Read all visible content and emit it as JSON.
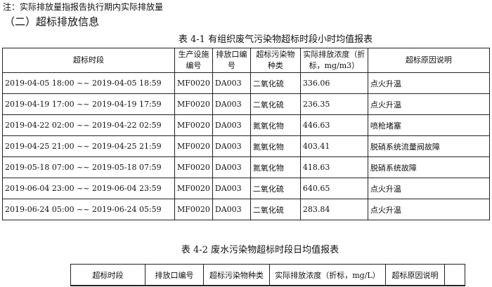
{
  "note": "注：实际排放量指报告执行期内实际排放量",
  "section_title": "（二）超标排放信息",
  "table1": {
    "caption": "表 4-1 有组织废气污染物超标时段小时均值报表",
    "headers": [
      "超标时段",
      "生产设施编号",
      "排放口编号",
      "超标污染物种类",
      "实际排放浓度（折标，mg/m3）",
      "超标原因说明"
    ],
    "rows": [
      [
        "2019-04-05 18:00 ~~ 2019-04-05 18:59",
        "MF0020",
        "DA003",
        "二氧化硫",
        "336.06",
        "点火升温"
      ],
      [
        "2019-04-19 17:00 ~~ 2019-04-19 17:59",
        "MF0020",
        "DA003",
        "二氧化硫",
        "236.35",
        "点火升温"
      ],
      [
        "2019-04-22 02:00 ~~ 2019-04-22 02:59",
        "MF0020",
        "DA003",
        "氮氧化物",
        "446.63",
        "喷枪堵塞"
      ],
      [
        "2019-04-25 21:00 ~~ 2019-04-25 21:59",
        "MF0020",
        "DA003",
        "氮氧化物",
        "403.41",
        "脱硝系统流量阀故障"
      ],
      [
        "2019-05-18 07:00 ~~ 2019-05-18 07:59",
        "MF0020",
        "DA003",
        "氮氧化物",
        "418.63",
        "脱硝系统故障"
      ],
      [
        "2019-06-04 23:00 ~~ 2019-06-04 23:59",
        "MF0020",
        "DA003",
        "二氧化硫",
        "640.65",
        "点火升温"
      ],
      [
        "2019-06-24 05:00 ~~ 2019-06-24 05:59",
        "MF0020",
        "DA003",
        "二氧化硫",
        "283.84",
        "点火升温"
      ]
    ]
  },
  "table2": {
    "caption": "表 4-2 废水污染物超标时段日均值报表",
    "headers": [
      "超标时段",
      "排放口编号",
      "超标污染物种类",
      "实际排放浓度（折标，mg/L）",
      "超标原因说明",
      ""
    ]
  }
}
